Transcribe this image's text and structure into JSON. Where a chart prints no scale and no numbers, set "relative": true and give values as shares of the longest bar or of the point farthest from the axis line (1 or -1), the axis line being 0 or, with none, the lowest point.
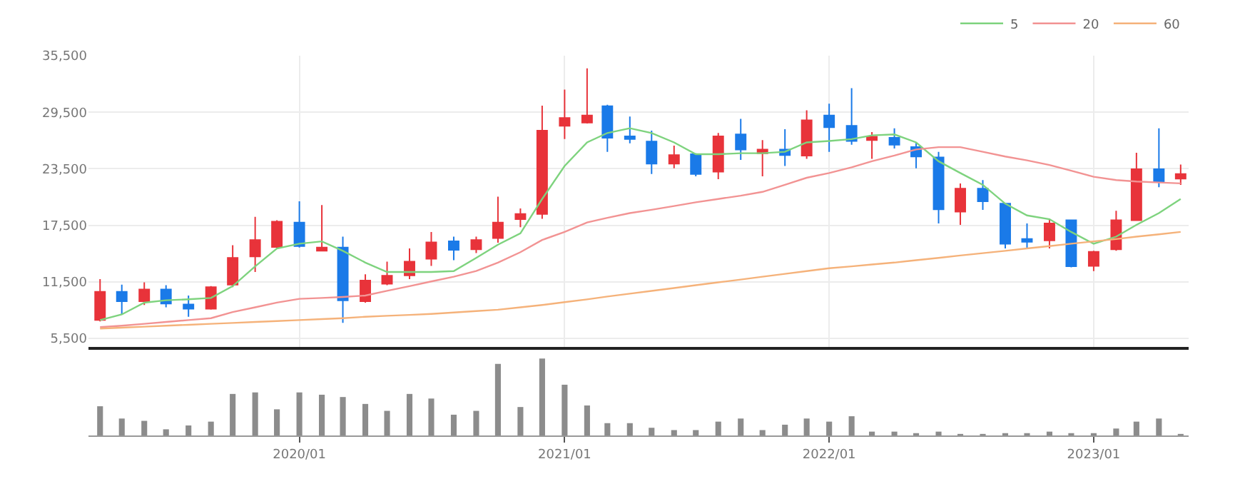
{
  "chart_data": [
    {
      "type": "candlestick",
      "x": [
        "2019-04",
        "2019-05",
        "2019-06",
        "2019-07",
        "2019-08",
        "2019-09",
        "2019-10",
        "2019-11",
        "2019-12",
        "2020-01",
        "2020-02",
        "2020-03",
        "2020-04",
        "2020-05",
        "2020-06",
        "2020-07",
        "2020-08",
        "2020-09",
        "2020-10",
        "2020-11",
        "2020-12",
        "2021-01",
        "2021-02",
        "2021-03",
        "2021-04",
        "2021-05",
        "2021-06",
        "2021-07",
        "2021-08",
        "2021-09",
        "2021-10",
        "2021-11",
        "2021-12",
        "2022-01",
        "2022-02",
        "2022-03",
        "2022-04",
        "2022-05",
        "2022-06",
        "2022-07",
        "2022-08",
        "2022-09",
        "2022-10",
        "2022-11",
        "2022-12",
        "2023-01",
        "2023-02",
        "2023-03",
        "2023-04",
        "2023-05"
      ],
      "ohlc": [
        [
          7450,
          11800,
          7300,
          10450
        ],
        [
          10450,
          11200,
          8050,
          9450
        ],
        [
          9450,
          11450,
          9050,
          10700
        ],
        [
          10700,
          11150,
          8800,
          9200
        ],
        [
          9100,
          10050,
          7800,
          8650
        ],
        [
          8650,
          11050,
          8550,
          10950
        ],
        [
          11200,
          15400,
          10950,
          14050
        ],
        [
          14200,
          18400,
          12550,
          15950
        ],
        [
          15200,
          18050,
          15050,
          17900
        ],
        [
          17800,
          20050,
          15150,
          15300
        ],
        [
          14800,
          19650,
          14800,
          15150
        ],
        [
          15150,
          16300,
          7150,
          9550
        ],
        [
          9450,
          12300,
          9300,
          11650
        ],
        [
          11300,
          13650,
          11150,
          12150
        ],
        [
          12200,
          15050,
          11800,
          13650
        ],
        [
          13950,
          16800,
          13200,
          15700
        ],
        [
          15800,
          16300,
          13800,
          14900
        ],
        [
          14950,
          16300,
          14550,
          15950
        ],
        [
          16150,
          20550,
          15650,
          17800
        ],
        [
          18150,
          19300,
          17300,
          18700
        ],
        [
          18700,
          30200,
          18200,
          27550
        ],
        [
          28050,
          31900,
          26650,
          28900
        ],
        [
          28400,
          34150,
          28300,
          29150
        ],
        [
          30150,
          30300,
          25300,
          26800
        ],
        [
          26950,
          29050,
          26200,
          26650
        ],
        [
          26400,
          27550,
          22950,
          24050
        ],
        [
          24050,
          25950,
          23550,
          24950
        ],
        [
          25050,
          25150,
          22700,
          22950
        ],
        [
          23200,
          27300,
          22400,
          26950
        ],
        [
          27150,
          28800,
          24450,
          25550
        ],
        [
          25150,
          26550,
          22700,
          25550
        ],
        [
          25550,
          27700,
          23800,
          24950
        ],
        [
          24900,
          29700,
          24550,
          28650
        ],
        [
          29150,
          30400,
          25300,
          27900
        ],
        [
          28050,
          32050,
          26050,
          26450
        ],
        [
          26550,
          27400,
          24550,
          26900
        ],
        [
          26800,
          27800,
          25650,
          26050
        ],
        [
          25800,
          26300,
          23550,
          24800
        ],
        [
          24700,
          25300,
          17700,
          19200
        ],
        [
          18950,
          21950,
          17550,
          21400
        ],
        [
          21400,
          22300,
          19150,
          20050
        ],
        [
          19800,
          19800,
          15050,
          15550
        ],
        [
          16050,
          17700,
          15050,
          15750
        ],
        [
          15900,
          18200,
          15050,
          17700
        ],
        [
          18050,
          18050,
          13050,
          13150
        ],
        [
          13200,
          14800,
          12650,
          14700
        ],
        [
          14950,
          19050,
          14800,
          18050
        ],
        [
          18050,
          25200,
          18050,
          23450
        ],
        [
          23450,
          27800,
          21550,
          22150
        ],
        [
          22450,
          23950,
          21800,
          22950
        ]
      ],
      "colors": [
        "#e8333a",
        "#1a7ae8",
        "#e8333a",
        "#1a7ae8",
        "#1a7ae8",
        "#e8333a",
        "#e8333a",
        "#e8333a",
        "#e8333a",
        "#1a7ae8",
        "#e8333a",
        "#1a7ae8",
        "#e8333a",
        "#e8333a",
        "#e8333a",
        "#e8333a",
        "#1a7ae8",
        "#e8333a",
        "#e8333a",
        "#e8333a",
        "#e8333a",
        "#e8333a",
        "#e8333a",
        "#1a7ae8",
        "#1a7ae8",
        "#1a7ae8",
        "#e8333a",
        "#1a7ae8",
        "#e8333a",
        "#1a7ae8",
        "#e8333a",
        "#1a7ae8",
        "#e8333a",
        "#1a7ae8",
        "#1a7ae8",
        "#e8333a",
        "#1a7ae8",
        "#1a7ae8",
        "#1a7ae8",
        "#e8333a",
        "#1a7ae8",
        "#1a7ae8",
        "#1a7ae8",
        "#e8333a",
        "#1a7ae8",
        "#e8333a",
        "#e8333a",
        "#e8333a",
        "#1a7ae8",
        "#e8333a"
      ],
      "series": [
        {
          "type": "line",
          "name": "5",
          "color": "#7ed37e",
          "values": [
            7450,
            8050,
            9300,
            9550,
            9650,
            9800,
            11050,
            13150,
            15050,
            15550,
            15800,
            14800,
            13550,
            12550,
            12550,
            12550,
            12650,
            14050,
            15450,
            16650,
            20300,
            23800,
            26300,
            27300,
            27800,
            27300,
            26300,
            25050,
            25050,
            25150,
            25150,
            25300,
            26300,
            26450,
            26650,
            27050,
            27150,
            26300,
            24300,
            23050,
            21800,
            19800,
            18550,
            18150,
            16800,
            15550,
            16300,
            17550,
            18800,
            20300
          ]
        },
        {
          "type": "line",
          "name": "20",
          "color": "#f29393",
          "values": [
            6700,
            6850,
            7050,
            7250,
            7450,
            7650,
            8300,
            8800,
            9300,
            9700,
            9800,
            9900,
            10050,
            10550,
            11050,
            11550,
            12050,
            12650,
            13550,
            14650,
            15950,
            16800,
            17800,
            18300,
            18800,
            19150,
            19550,
            19950,
            20300,
            20650,
            21050,
            21800,
            22550,
            23050,
            23650,
            24300,
            24900,
            25550,
            25800,
            25800,
            25300,
            24800,
            24400,
            23900,
            23300,
            22650,
            22300,
            22150,
            22050,
            21950
          ]
        },
        {
          "type": "line",
          "name": "60",
          "color": "#f5b27a",
          "values": [
            6550,
            6650,
            6750,
            6850,
            6950,
            7050,
            7150,
            7250,
            7350,
            7450,
            7550,
            7650,
            7800,
            7900,
            8000,
            8100,
            8250,
            8400,
            8550,
            8800,
            9050,
            9350,
            9650,
            9950,
            10250,
            10550,
            10850,
            11150,
            11450,
            11750,
            12050,
            12350,
            12650,
            12950,
            13150,
            13350,
            13550,
            13800,
            14050,
            14300,
            14550,
            14800,
            15050,
            15300,
            15550,
            15800,
            16050,
            16300,
            16550,
            16800
          ]
        }
      ],
      "xlim": [
        "2019-03-16",
        "2023-05-12"
      ],
      "xticks": [
        {
          "value": "2020-01",
          "label": null
        },
        {
          "value": "2021-01",
          "label": null
        },
        {
          "value": "2022-01",
          "label": null
        },
        {
          "value": "2023-01",
          "label": null
        }
      ],
      "ylim": [
        4600,
        35500
      ],
      "yticks": [
        {
          "value": 5500,
          "label": "5,500"
        },
        {
          "value": 11500,
          "label": "11,500"
        },
        {
          "value": 17500,
          "label": "17,500"
        },
        {
          "value": 23500,
          "label": "23,500"
        },
        {
          "value": 29500,
          "label": "29,500"
        },
        {
          "value": 35500,
          "label": "35,500"
        }
      ],
      "grid": true,
      "legend": "top right",
      "marker": "none",
      "line_style": "solid",
      "tick_labels": "y"
    },
    {
      "type": "bar",
      "relative": true,
      "color": "#8c8c8c",
      "x": [
        "2019-04",
        "2019-05",
        "2019-06",
        "2019-07",
        "2019-08",
        "2019-09",
        "2019-10",
        "2019-11",
        "2019-12",
        "2020-01",
        "2020-02",
        "2020-03",
        "2020-04",
        "2020-05",
        "2020-06",
        "2020-07",
        "2020-08",
        "2020-09",
        "2020-10",
        "2020-11",
        "2020-12",
        "2021-01",
        "2021-02",
        "2021-03",
        "2021-04",
        "2021-05",
        "2021-06",
        "2021-07",
        "2021-08",
        "2021-09",
        "2021-10",
        "2021-11",
        "2021-12",
        "2022-01",
        "2022-02",
        "2022-03",
        "2022-04",
        "2022-05",
        "2022-06",
        "2022-07",
        "2022-08",
        "2022-09",
        "2022-10",
        "2022-11",
        "2022-12",
        "2023-01",
        "2023-02",
        "2023-03",
        "2023-04",
        "2023-05"
      ],
      "values": [
        0.38,
        0.22,
        0.19,
        0.08,
        0.13,
        0.18,
        0.54,
        0.56,
        0.34,
        0.56,
        0.53,
        0.5,
        0.41,
        0.32,
        0.54,
        0.48,
        0.27,
        0.32,
        0.93,
        0.37,
        1,
        0.66,
        0.39,
        0.16,
        0.16,
        0.1,
        0.07,
        0.07,
        0.18,
        0.22,
        0.07,
        0.14,
        0.22,
        0.18,
        0.25,
        0.05,
        0.05,
        0.03,
        0.05,
        0.02,
        0.02,
        0.03,
        0.03,
        0.05,
        0.03,
        0.03,
        0.09,
        0.18,
        0.22,
        0.02
      ],
      "xlim": [
        "2019-03-16",
        "2023-05-12"
      ],
      "xticks": [
        {
          "value": "2020-01",
          "label": "2020/01"
        },
        {
          "value": "2021-01",
          "label": "2021/01"
        },
        {
          "value": "2022-01",
          "label": "2022/01"
        },
        {
          "value": "2023-01",
          "label": "2023/01"
        }
      ],
      "grid": false,
      "legend": false,
      "tick_labels": "x"
    }
  ]
}
